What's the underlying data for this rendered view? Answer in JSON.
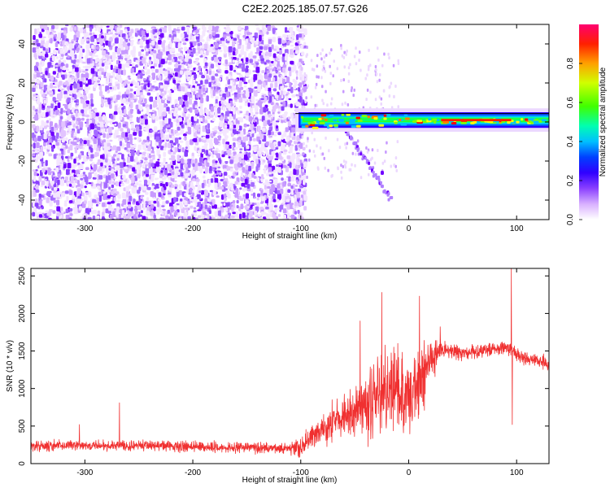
{
  "figure": {
    "title": "C2E2.2025.185.07.57.G26"
  },
  "colors": {
    "snr_line": "#f03030",
    "frame": "#000000",
    "background": "#ffffff",
    "colormap": [
      "#ffffff",
      "#e9d0ff",
      "#a070ff",
      "#7000ff",
      "#0000ff",
      "#00d0ff",
      "#00ff80",
      "#80ff00",
      "#ffff00",
      "#ff8000",
      "#ff0000",
      "#ff0060"
    ]
  },
  "chart_data": [
    {
      "type": "heatmap",
      "title": "",
      "xlabel": "Height of straight line (km)",
      "ylabel": "Frequency (Hz)",
      "xlim": [
        -350,
        130
      ],
      "ylim": [
        -50,
        50
      ],
      "xticks": [
        "-300",
        "-200",
        "-100",
        "0",
        "100"
      ],
      "xtick_values": [
        -300,
        -200,
        -100,
        0,
        100
      ],
      "yticks": [
        "40",
        "20",
        "0",
        "-20",
        "-40"
      ],
      "ytick_values": [
        40,
        20,
        0,
        -20,
        -40
      ],
      "colorbar": {
        "label": "Normalized spectral amplitude",
        "ticks": [
          "0.0",
          "0.2",
          "0.4",
          "0.6",
          "0.8"
        ],
        "tick_values": [
          0.0,
          0.2,
          0.4,
          0.6,
          0.8
        ],
        "range": [
          0,
          1
        ]
      },
      "features": {
        "noise_region_x": [
          -350,
          -105
        ],
        "noise_amplitude": 0.15,
        "carrier_center_hz": 1,
        "carrier_x": [
          -105,
          130
        ],
        "carrier_peak_amplitude": 1.0
      }
    },
    {
      "type": "line",
      "title": "",
      "xlabel": "Height of straight line (km)",
      "ylabel": "SNR (10 * v/v)",
      "xlim": [
        -350,
        130
      ],
      "ylim": [
        0,
        2600
      ],
      "xticks": [
        "-300",
        "-200",
        "-100",
        "0",
        "100"
      ],
      "xtick_values": [
        -300,
        -200,
        -100,
        0,
        100
      ],
      "yticks": [
        "0",
        "500",
        "1000",
        "1500",
        "2000",
        "2500"
      ],
      "ytick_values": [
        0,
        500,
        1000,
        1500,
        2000,
        2500
      ],
      "series": [
        {
          "x": [
            -350,
            -300,
            -250,
            -200,
            -150,
            -110,
            -100,
            -90,
            -80,
            -70,
            -60,
            -50,
            -40,
            -30,
            -20,
            -10,
            0,
            10,
            20,
            30,
            40,
            50,
            60,
            70,
            80,
            90,
            95,
            100,
            110,
            120,
            130
          ],
          "y": [
            230,
            250,
            240,
            230,
            210,
            200,
            230,
            330,
            450,
            560,
            620,
            700,
            820,
            900,
            1000,
            950,
            800,
            1100,
            1400,
            1550,
            1500,
            1470,
            1480,
            1500,
            1520,
            1550,
            1550,
            1450,
            1400,
            1380,
            1330
          ],
          "spikes": [
            {
              "x": -268,
              "y": 810
            },
            {
              "x": -305,
              "y": 520
            },
            {
              "x": -45,
              "y": 1900
            },
            {
              "x": -25,
              "y": 2280
            },
            {
              "x": -10,
              "y": 1600
            },
            {
              "x": 10,
              "y": 2230
            },
            {
              "x": 95,
              "y": 2600
            },
            {
              "x": 96,
              "y": 520
            }
          ]
        }
      ]
    }
  ]
}
